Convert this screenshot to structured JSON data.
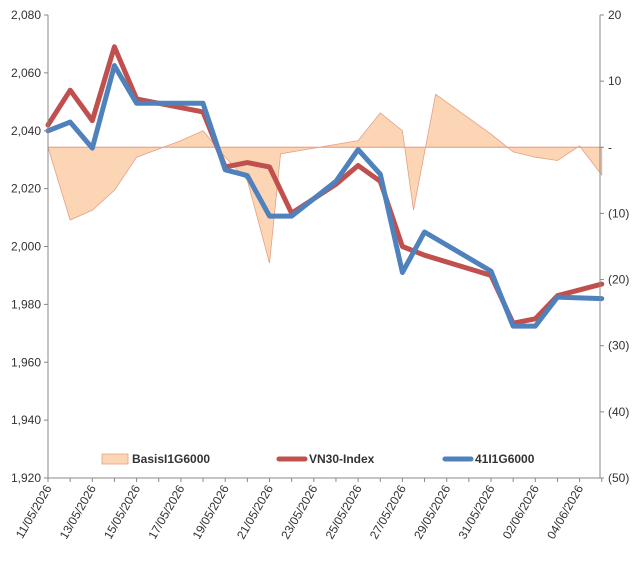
{
  "chart_data": {
    "type": "line",
    "x": [
      "11/05/2026",
      "12/05/2026",
      "13/05/2026",
      "14/05/2026",
      "15/05/2026",
      "16/05/2026",
      "17/05/2026",
      "18/05/2026",
      "19/05/2026",
      "20/05/2026",
      "21/05/2026",
      "22/05/2026",
      "23/05/2026",
      "24/05/2026",
      "25/05/2026",
      "26/05/2026",
      "27/05/2026",
      "28/05/2026",
      "29/05/2026",
      "30/05/2026",
      "31/05/2026",
      "01/06/2026",
      "02/06/2026",
      "03/06/2026",
      "04/06/2026",
      "05/06/2026"
    ],
    "x_tick_labels": [
      "11/05/2026",
      "13/05/2026",
      "15/05/2026",
      "17/05/2026",
      "19/05/2026",
      "21/05/2026",
      "23/05/2026",
      "25/05/2026",
      "27/05/2026",
      "29/05/2026",
      "31/05/2026",
      "02/06/2026",
      "04/06/2026"
    ],
    "y_left": {
      "min": 1920,
      "max": 2080,
      "ticks": [
        1920,
        1940,
        1960,
        1980,
        2000,
        2020,
        2040,
        2060,
        2080
      ],
      "tick_labels": [
        "1,920",
        "1,940",
        "1,960",
        "1,980",
        "2,000",
        "2,020",
        "2,040",
        "2,060",
        "2,080"
      ]
    },
    "y_right": {
      "min": -50,
      "max": 20,
      "ticks": [
        -50,
        -40,
        -30,
        -20,
        -10,
        0,
        10,
        20
      ],
      "tick_labels": [
        "(50)",
        "(40)",
        "(30)",
        "(20)",
        "(10)",
        "-",
        "10",
        "20"
      ]
    },
    "series": [
      {
        "name": "BasisI1G6000",
        "kind": "area",
        "axis": "right",
        "color": "#fcd5b5",
        "edge_color": "#e6a085",
        "points": [
          [
            "11/05/2026",
            0
          ],
          [
            "12/05/2026",
            -11
          ],
          [
            "13/05/2026",
            -9.5
          ],
          [
            "14/05/2026",
            -6.5
          ],
          [
            "15/05/2026",
            -1.5
          ],
          [
            "17/05/2026",
            1
          ],
          [
            "18/05/2026",
            2.5
          ],
          [
            "19/05/2026",
            -1.5
          ],
          [
            "20/05/2026",
            -5
          ],
          [
            "21/05/2026",
            -17.5
          ],
          [
            "21.5/05/2026",
            -1
          ],
          [
            "25/05/2026",
            1
          ],
          [
            "26/05/2026",
            5.2
          ],
          [
            "27/05/2026",
            2.5
          ],
          [
            "27.5/05/2026",
            -9.5
          ],
          [
            "28.5/05/2026",
            8
          ],
          [
            "31/05/2026",
            2
          ],
          [
            "01/06/2026",
            -0.7
          ],
          [
            "02/06/2026",
            -1.5
          ],
          [
            "03/06/2026",
            -2
          ],
          [
            "04/06/2026",
            0.2
          ],
          [
            "05/06/2026",
            -4.2
          ]
        ]
      },
      {
        "name": "VN30-Index",
        "kind": "line",
        "axis": "left",
        "color": "#c0504d",
        "points": [
          [
            "11/05/2026",
            2042
          ],
          [
            "12/05/2026",
            2054
          ],
          [
            "13/05/2026",
            2043.5
          ],
          [
            "14/05/2026",
            2069
          ],
          [
            "15/05/2026",
            2051
          ],
          [
            "16/05/2026",
            2049.5
          ],
          [
            "18/05/2026",
            2046.5
          ],
          [
            "19/05/2026",
            2027.5
          ],
          [
            "20/05/2026",
            2029
          ],
          [
            "21/05/2026",
            2027.5
          ],
          [
            "22/05/2026",
            2011.5
          ],
          [
            "24/05/2026",
            2021.5
          ],
          [
            "25/05/2026",
            2028
          ],
          [
            "26/05/2026",
            2022.5
          ],
          [
            "27/05/2026",
            2000
          ],
          [
            "28/05/2026",
            1997
          ],
          [
            "31/05/2026",
            1990
          ],
          [
            "01/06/2026",
            1973.5
          ],
          [
            "02/06/2026",
            1975
          ],
          [
            "03/06/2026",
            1983
          ],
          [
            "05/06/2026",
            1987
          ]
        ]
      },
      {
        "name": "41I1G6000",
        "kind": "line",
        "axis": "left",
        "color": "#4f81bd",
        "points": [
          [
            "11/05/2026",
            2040
          ],
          [
            "12/05/2026",
            2043
          ],
          [
            "13/05/2026",
            2034
          ],
          [
            "14/05/2026",
            2062.5
          ],
          [
            "15/05/2026",
            2049.5
          ],
          [
            "18/05/2026",
            2049.5
          ],
          [
            "19/05/2026",
            2026.5
          ],
          [
            "20/05/2026",
            2024.5
          ],
          [
            "21/05/2026",
            2010.5
          ],
          [
            "22/05/2026",
            2010.5
          ],
          [
            "24/05/2026",
            2022.5
          ],
          [
            "25/05/2026",
            2033.5
          ],
          [
            "26/05/2026",
            2025
          ],
          [
            "27/05/2026",
            1991
          ],
          [
            "28/05/2026",
            2005
          ],
          [
            "31/05/2026",
            1991.5
          ],
          [
            "01/06/2026",
            1972.5
          ],
          [
            "02/06/2026",
            1972.5
          ],
          [
            "03/06/2026",
            1982.5
          ],
          [
            "05/06/2026",
            1982
          ]
        ]
      }
    ],
    "legend_placement": "bottom-inside",
    "grid": false
  }
}
